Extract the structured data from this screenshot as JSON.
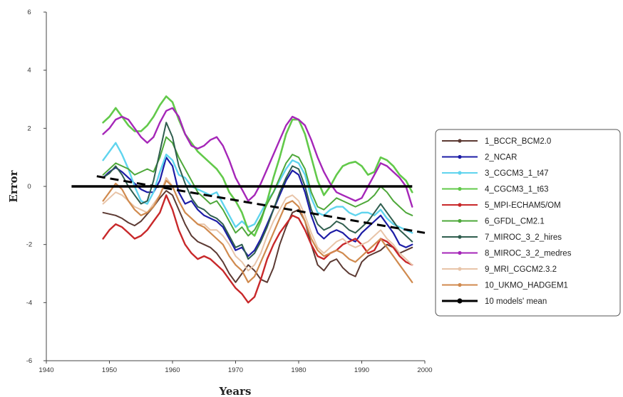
{
  "chart_data": {
    "type": "line",
    "title": "",
    "xlabel": "Years",
    "ylabel": "Error",
    "xlim": [
      1940,
      2000
    ],
    "ylim": [
      -6,
      6
    ],
    "x_ticks": [
      "1940",
      "1950",
      "1960",
      "1970",
      "1980",
      "1990",
      "2000"
    ],
    "y_ticks": [
      "-6",
      "-4",
      "-2",
      "0",
      "2",
      "4",
      "6"
    ],
    "grid": false,
    "legend_position": "right",
    "x": [
      1949,
      1950,
      1951,
      1952,
      1953,
      1954,
      1955,
      1956,
      1957,
      1958,
      1959,
      1960,
      1961,
      1962,
      1963,
      1964,
      1965,
      1966,
      1967,
      1968,
      1969,
      1970,
      1971,
      1972,
      1973,
      1974,
      1975,
      1976,
      1977,
      1978,
      1979,
      1980,
      1981,
      1982,
      1983,
      1984,
      1985,
      1986,
      1987,
      1988,
      1989,
      1990,
      1991,
      1992,
      1993,
      1994,
      1995,
      1996,
      1997,
      1998
    ],
    "series": [
      {
        "name": "1_BCCR_BCM2.0",
        "color": "#5c3a33",
        "width": 2,
        "values": [
          -0.9,
          -0.95,
          -1.0,
          -1.1,
          -1.25,
          -1.35,
          -1.2,
          -0.95,
          -0.7,
          -0.4,
          -0.15,
          -0.3,
          -0.8,
          -1.3,
          -1.7,
          -1.9,
          -2.0,
          -2.1,
          -2.3,
          -2.6,
          -3.0,
          -3.3,
          -3.0,
          -2.7,
          -2.9,
          -3.2,
          -3.3,
          -2.8,
          -2.0,
          -1.4,
          -0.9,
          -0.8,
          -1.2,
          -2.0,
          -2.7,
          -2.9,
          -2.6,
          -2.5,
          -2.8,
          -3.0,
          -3.1,
          -2.6,
          -2.4,
          -2.3,
          -2.2,
          -2.0,
          -2.1,
          -2.3,
          -2.2,
          -2.1
        ]
      },
      {
        "name": "2_NCAR",
        "color": "#1d1da6",
        "width": 2.2,
        "values": [
          0.3,
          0.5,
          0.65,
          0.5,
          0.3,
          0.1,
          -0.1,
          -0.2,
          -0.2,
          0.2,
          1.0,
          0.7,
          -0.2,
          -0.6,
          -0.5,
          -0.8,
          -1.0,
          -1.1,
          -1.2,
          -1.4,
          -1.8,
          -2.2,
          -2.1,
          -2.4,
          -2.2,
          -1.8,
          -1.3,
          -0.8,
          -0.3,
          0.2,
          0.55,
          0.4,
          -0.2,
          -1.0,
          -1.6,
          -1.8,
          -1.6,
          -1.5,
          -1.6,
          -1.8,
          -1.9,
          -1.6,
          -1.4,
          -1.2,
          -1.0,
          -1.3,
          -1.6,
          -2.0,
          -2.1,
          -2.0
        ]
      },
      {
        "name": "3_CGCM3_1_t47",
        "color": "#5fd4ee",
        "width": 2.4,
        "values": [
          0.9,
          1.2,
          1.5,
          1.1,
          0.6,
          0.0,
          -0.5,
          -0.6,
          -0.2,
          0.5,
          1.1,
          0.9,
          0.4,
          0.3,
          0.0,
          -0.1,
          -0.2,
          -0.3,
          -0.2,
          -0.6,
          -1.0,
          -1.4,
          -1.2,
          -1.4,
          -1.3,
          -0.9,
          -0.5,
          -0.2,
          0.2,
          0.6,
          0.9,
          0.8,
          0.4,
          -0.4,
          -0.9,
          -1.0,
          -0.8,
          -0.7,
          -0.7,
          -0.9,
          -1.0,
          -0.9,
          -0.9,
          -1.0,
          -0.8,
          -1.1,
          -1.3,
          -1.4,
          -1.5,
          -1.6
        ]
      },
      {
        "name": "4_CGCM3_1_t63",
        "color": "#62c94a",
        "width": 2.6,
        "values": [
          2.2,
          2.4,
          2.7,
          2.4,
          2.1,
          1.9,
          1.9,
          2.1,
          2.4,
          2.8,
          3.1,
          2.9,
          2.3,
          1.8,
          1.5,
          1.2,
          1.0,
          0.8,
          0.6,
          0.3,
          -0.2,
          -0.5,
          -0.9,
          -1.5,
          -1.7,
          -1.2,
          -0.5,
          0.3,
          1.0,
          1.8,
          2.3,
          2.3,
          1.8,
          1.0,
          0.2,
          -0.3,
          0.0,
          0.4,
          0.7,
          0.8,
          0.85,
          0.7,
          0.4,
          0.5,
          1.0,
          0.9,
          0.7,
          0.4,
          0.2,
          -0.2
        ]
      },
      {
        "name": "5_MPI-ECHAM5/OM",
        "color": "#c8282a",
        "width": 2.4,
        "values": [
          -1.8,
          -1.5,
          -1.3,
          -1.4,
          -1.6,
          -1.8,
          -1.7,
          -1.5,
          -1.2,
          -0.9,
          -0.3,
          -0.8,
          -1.5,
          -2.0,
          -2.3,
          -2.5,
          -2.4,
          -2.5,
          -2.7,
          -2.9,
          -3.2,
          -3.5,
          -3.7,
          -4.0,
          -3.8,
          -3.2,
          -2.5,
          -2.0,
          -1.6,
          -1.3,
          -1.0,
          -1.1,
          -1.5,
          -2.0,
          -2.4,
          -2.5,
          -2.3,
          -2.2,
          -2.0,
          -1.9,
          -1.8,
          -2.0,
          -2.3,
          -2.2,
          -1.8,
          -1.9,
          -2.1,
          -2.4,
          -2.6,
          -2.7
        ]
      },
      {
        "name": "6_GFDL_CM2.1",
        "color": "#4ea83a",
        "width": 2,
        "values": [
          0.4,
          0.6,
          0.8,
          0.7,
          0.6,
          0.4,
          0.5,
          0.6,
          0.5,
          1.0,
          1.7,
          1.5,
          1.0,
          0.6,
          0.2,
          -0.2,
          -0.4,
          -0.6,
          -0.5,
          -0.8,
          -1.2,
          -1.6,
          -1.4,
          -1.7,
          -1.5,
          -1.1,
          -0.6,
          -0.2,
          0.3,
          0.8,
          1.1,
          1.0,
          0.6,
          -0.2,
          -0.7,
          -0.8,
          -0.6,
          -0.4,
          -0.5,
          -0.6,
          -0.7,
          -0.6,
          -0.5,
          -0.3,
          0.0,
          -0.2,
          -0.5,
          -0.7,
          -0.9,
          -1.0
        ]
      },
      {
        "name": "7_MIROC_3_2_hires",
        "color": "#2f5e4e",
        "width": 2,
        "values": [
          0.3,
          0.45,
          0.7,
          0.4,
          0.0,
          -0.3,
          -0.6,
          -0.5,
          0.2,
          1.2,
          2.2,
          1.7,
          0.7,
          0.1,
          -0.4,
          -0.7,
          -0.8,
          -1.0,
          -1.1,
          -1.3,
          -1.7,
          -2.1,
          -2.0,
          -2.5,
          -2.3,
          -1.9,
          -1.4,
          -0.8,
          -0.2,
          0.3,
          0.7,
          0.6,
          0.0,
          -0.8,
          -1.3,
          -1.5,
          -1.4,
          -1.2,
          -1.3,
          -1.5,
          -1.6,
          -1.4,
          -1.2,
          -0.9,
          -0.6,
          -0.9,
          -1.2,
          -1.5,
          -1.7,
          -1.9
        ]
      },
      {
        "name": "8_MIROC_3_2_medres",
        "color": "#a526b8",
        "width": 2.4,
        "values": [
          1.8,
          2.0,
          2.3,
          2.4,
          2.3,
          2.0,
          1.7,
          1.5,
          1.7,
          2.2,
          2.6,
          2.7,
          2.4,
          1.8,
          1.4,
          1.3,
          1.4,
          1.6,
          1.7,
          1.4,
          0.9,
          0.3,
          -0.1,
          -0.5,
          -0.3,
          0.1,
          0.6,
          1.1,
          1.6,
          2.1,
          2.4,
          2.3,
          2.1,
          1.6,
          1.0,
          0.5,
          0.1,
          -0.2,
          -0.3,
          -0.4,
          -0.5,
          -0.4,
          0.0,
          0.4,
          0.8,
          0.7,
          0.5,
          0.3,
          0.0,
          -0.7
        ]
      },
      {
        "name": "9_MRI_CGCM2.3.2",
        "color": "#e8c4a8",
        "width": 2,
        "values": [
          -0.6,
          -0.4,
          -0.2,
          -0.3,
          -0.5,
          -0.7,
          -0.8,
          -0.9,
          -0.6,
          -0.3,
          0.3,
          0.0,
          -0.5,
          -0.9,
          -1.1,
          -1.3,
          -1.3,
          -1.5,
          -1.5,
          -1.7,
          -2.0,
          -2.4,
          -2.6,
          -2.9,
          -2.7,
          -2.3,
          -1.7,
          -1.2,
          -0.8,
          -0.4,
          -0.3,
          -0.5,
          -1.0,
          -1.6,
          -2.1,
          -2.3,
          -2.1,
          -1.9,
          -1.8,
          -2.0,
          -2.1,
          -2.0,
          -1.9,
          -1.7,
          -1.5,
          -1.8,
          -2.0,
          -2.3,
          -2.5,
          -2.7
        ]
      },
      {
        "name": "10_UKMO_HADGEM1",
        "color": "#d08a4e",
        "width": 2.2,
        "values": [
          -0.5,
          -0.2,
          0.1,
          -0.1,
          -0.5,
          -0.8,
          -1.0,
          -0.9,
          -0.7,
          -0.3,
          0.2,
          0.0,
          -0.5,
          -0.9,
          -1.1,
          -1.3,
          -1.4,
          -1.6,
          -1.8,
          -2.0,
          -2.4,
          -2.7,
          -2.9,
          -3.3,
          -3.1,
          -2.6,
          -2.1,
          -1.6,
          -1.1,
          -0.6,
          -0.5,
          -0.7,
          -1.2,
          -1.8,
          -2.2,
          -2.4,
          -2.3,
          -2.2,
          -2.3,
          -2.5,
          -2.6,
          -2.4,
          -2.2,
          -2.0,
          -1.8,
          -2.1,
          -2.4,
          -2.7,
          -3.0,
          -3.3
        ]
      }
    ],
    "mean_line": {
      "name": "10 models' mean",
      "color": "#000000",
      "x": [
        1944,
        1998
      ],
      "values": [
        0.0,
        0.0
      ]
    },
    "trend_line": {
      "color": "#000000",
      "dashed": true,
      "x": [
        1948,
        2000
      ],
      "values": [
        0.35,
        -1.6
      ]
    }
  }
}
